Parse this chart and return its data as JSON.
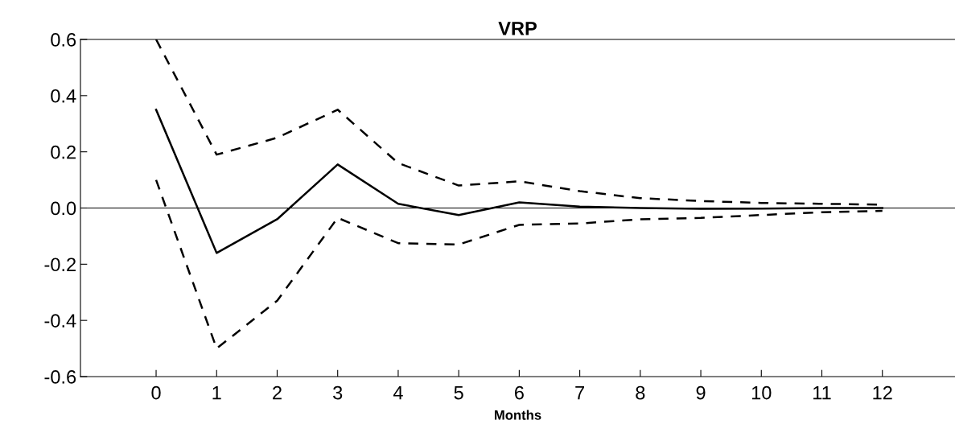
{
  "chart_data": {
    "type": "line",
    "title": "VRP",
    "xlabel": "Months",
    "x": [
      0,
      1,
      2,
      3,
      4,
      5,
      6,
      7,
      8,
      9,
      10,
      11,
      12
    ],
    "series": [
      {
        "color": "#000000",
        "line_style": "solid",
        "values": [
          0.35,
          -0.16,
          -0.04,
          0.155,
          0.015,
          -0.025,
          0.02,
          0.005,
          0.0,
          -0.003,
          -0.002,
          0.0,
          0.0
        ]
      },
      {
        "color": "#000000",
        "line_style": "dashed",
        "values": [
          0.6,
          0.19,
          0.25,
          0.35,
          0.16,
          0.08,
          0.095,
          0.06,
          0.035,
          0.025,
          0.018,
          0.015,
          0.012
        ]
      },
      {
        "color": "#000000",
        "line_style": "dashed",
        "values": [
          0.1,
          -0.5,
          -0.33,
          -0.035,
          -0.125,
          -0.13,
          -0.06,
          -0.055,
          -0.04,
          -0.035,
          -0.025,
          -0.015,
          -0.01
        ]
      }
    ],
    "xlim": [
      -1.25,
      13.2
    ],
    "ylim": [
      -0.6,
      0.6
    ],
    "xticks": [
      0,
      1,
      2,
      3,
      4,
      5,
      6,
      7,
      8,
      9,
      10,
      11,
      12
    ],
    "yticks": [
      {
        "value": 0.6,
        "label": "0.6"
      },
      {
        "value": 0.4,
        "label": "0.4"
      },
      {
        "value": 0.2,
        "label": "0.2"
      },
      {
        "value": 0,
        "label": "0.0"
      },
      {
        "value": -0.2,
        "label": "-0.2"
      },
      {
        "value": -0.4,
        "label": "-0.4"
      },
      {
        "value": -0.6,
        "label": "-0.6"
      }
    ],
    "ref_lines": [
      {
        "axis": "y",
        "value": 0,
        "color": "#000000"
      }
    ],
    "grid": false,
    "legend": false,
    "marker": "none"
  }
}
